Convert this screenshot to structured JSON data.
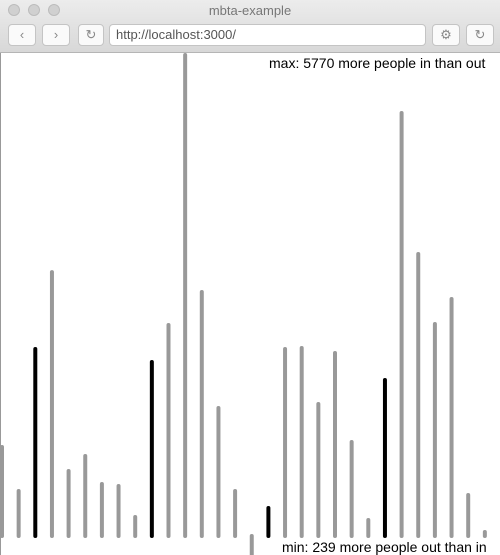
{
  "window": {
    "title": "mbta-example",
    "url": "http://localhost:3000/"
  },
  "chart_data": {
    "type": "bar",
    "annotations": [
      "max: 5770 more people in than out",
      "min: 239 more people out than in"
    ],
    "values": [
      1067,
      540,
      2243,
      3166,
      780,
      960,
      624,
      600,
      228,
      2087,
      2531,
      5770,
      2927,
      1535,
      540,
      -239,
      336,
      2243,
      2255,
      1583,
      2195,
      1128,
      192,
      1871,
      5074,
      3383,
      2543,
      2843,
      492,
      48
    ],
    "colors": [
      "#999999",
      "#999999",
      "#000000",
      "#999999",
      "#999999",
      "#999999",
      "#999999",
      "#999999",
      "#999999",
      "#000000",
      "#999999",
      "#999999",
      "#999999",
      "#999999",
      "#999999",
      "#999999",
      "#000000",
      "#999999",
      "#999999",
      "#999999",
      "#999999",
      "#999999",
      "#999999",
      "#000000",
      "#999999",
      "#999999",
      "#999999",
      "#999999",
      "#999999",
      "#999999"
    ]
  }
}
